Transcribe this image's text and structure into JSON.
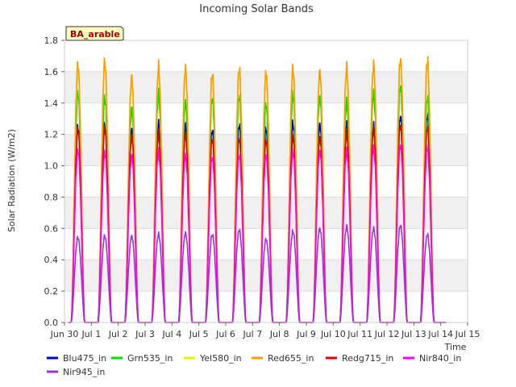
{
  "chart_data": {
    "type": "line",
    "title": "Incoming Solar Bands",
    "xlabel": "Time",
    "ylabel": "Solar Radiation (W/m2)",
    "site_label": "BA_arable",
    "ylim": [
      0,
      1.8
    ],
    "yticks": [
      0.0,
      0.2,
      0.4,
      0.6,
      0.8,
      1.0,
      1.2,
      1.4,
      1.6,
      1.8
    ],
    "xlim": [
      0,
      15
    ],
    "xtick_labels": [
      "Jun 30",
      "Jul 1",
      "Jul 2",
      "Jul 3",
      "Jul 4",
      "Jul 5",
      "Jul 6",
      "Jul 7",
      "Jul 8",
      "Jul 9",
      "Jul 10",
      "Jul 11",
      "Jul 12",
      "Jul 13",
      "Jul 14",
      "Jul 15"
    ],
    "grid": true,
    "legend_position": "bottom",
    "day_peak_x": [
      0.5,
      1.5,
      2.5,
      3.5,
      4.5,
      5.5,
      6.5,
      7.5,
      8.5,
      9.5,
      10.5,
      11.5,
      12.5,
      13.5
    ],
    "series": [
      {
        "name": "Blu475_in",
        "color": "#0000cc",
        "daily_peaks": [
          1.29,
          1.3,
          1.27,
          1.3,
          1.3,
          1.27,
          1.3,
          1.28,
          1.31,
          1.31,
          1.3,
          1.3,
          1.36,
          1.36
        ]
      },
      {
        "name": "Grn535_in",
        "color": "#00dd00",
        "daily_peaks": [
          1.51,
          1.48,
          1.41,
          1.5,
          1.45,
          1.48,
          1.49,
          1.44,
          1.5,
          1.49,
          1.45,
          1.51,
          1.56,
          1.48
        ]
      },
      {
        "name": "Yel580_in",
        "color": "#eeee00",
        "daily_peaks": [
          1.66,
          1.7,
          1.58,
          1.66,
          1.65,
          1.62,
          1.64,
          1.63,
          1.65,
          1.65,
          1.66,
          1.68,
          1.72,
          1.7
        ]
      },
      {
        "name": "Red655_in",
        "color": "#ff9900",
        "daily_peaks": [
          1.7,
          1.72,
          1.62,
          1.68,
          1.68,
          1.64,
          1.67,
          1.65,
          1.67,
          1.66,
          1.68,
          1.7,
          1.74,
          1.73
        ]
      },
      {
        "name": "Redg715_in",
        "color": "#dd0000",
        "daily_peaks": [
          1.27,
          1.28,
          1.23,
          1.24,
          1.24,
          1.21,
          1.21,
          1.2,
          1.22,
          1.22,
          1.25,
          1.27,
          1.3,
          1.28
        ]
      },
      {
        "name": "Nir840_in",
        "color": "#ff00ff",
        "daily_peaks": [
          1.13,
          1.12,
          1.1,
          1.12,
          1.1,
          1.09,
          1.1,
          1.1,
          1.12,
          1.13,
          1.13,
          1.15,
          1.17,
          1.15
        ]
      },
      {
        "name": "Nir945_in",
        "color": "#9933dd",
        "daily_peaks": [
          0.56,
          0.57,
          0.57,
          0.58,
          0.59,
          0.58,
          0.61,
          0.55,
          0.6,
          0.62,
          0.63,
          0.62,
          0.64,
          0.58
        ]
      }
    ]
  }
}
